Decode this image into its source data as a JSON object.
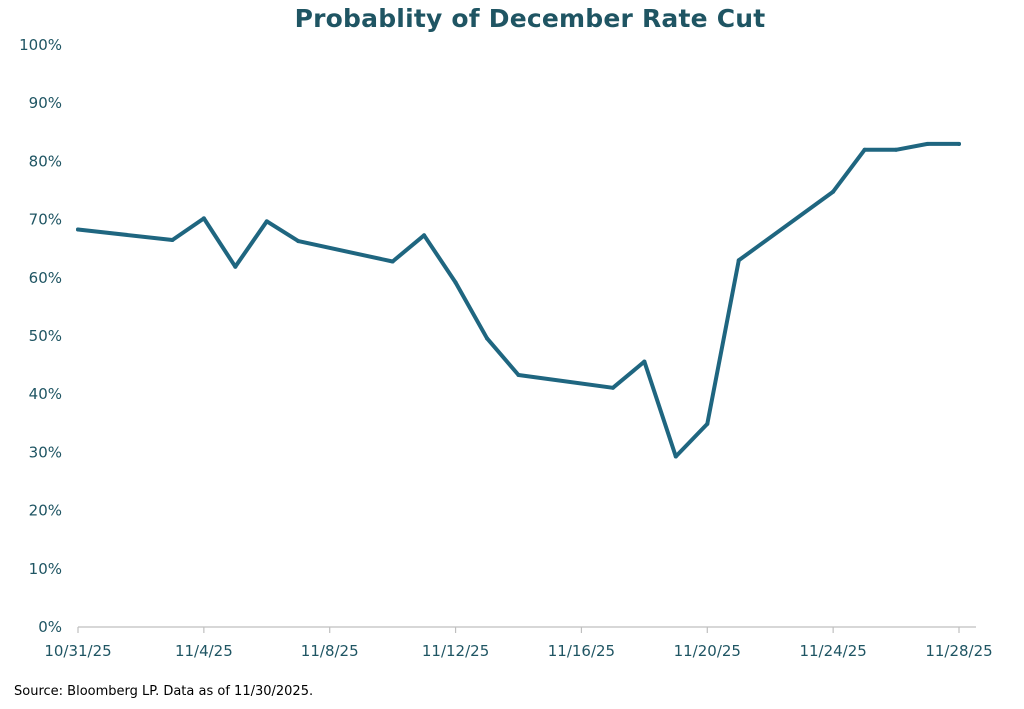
{
  "chart_data": {
    "type": "line",
    "title": "Probablity of December Rate Cut",
    "xlabel": "",
    "ylabel": "",
    "ylim": [
      0,
      100
    ],
    "y_ticks": [
      "0%",
      "10%",
      "20%",
      "30%",
      "40%",
      "50%",
      "60%",
      "70%",
      "80%",
      "90%",
      "100%"
    ],
    "x_ticks": [
      "10/31/25",
      "11/4/25",
      "11/8/25",
      "11/12/25",
      "11/16/25",
      "11/20/25",
      "11/24/25",
      "11/28/25"
    ],
    "x_range": [
      "2025-10-31",
      "2025-11-28"
    ],
    "grid": false,
    "legend": "none",
    "series": [
      {
        "color": "#1f6680",
        "points": [
          {
            "x": "2025-10-31",
            "y": 68.3
          },
          {
            "x": "2025-11-03",
            "y": 66.5
          },
          {
            "x": "2025-11-04",
            "y": 70.2
          },
          {
            "x": "2025-11-05",
            "y": 61.9
          },
          {
            "x": "2025-11-06",
            "y": 69.7
          },
          {
            "x": "2025-11-07",
            "y": 66.3
          },
          {
            "x": "2025-11-10",
            "y": 62.8
          },
          {
            "x": "2025-11-11",
            "y": 67.3
          },
          {
            "x": "2025-11-12",
            "y": 59.2
          },
          {
            "x": "2025-11-13",
            "y": 49.6
          },
          {
            "x": "2025-11-14",
            "y": 43.3
          },
          {
            "x": "2025-11-17",
            "y": 41.1
          },
          {
            "x": "2025-11-18",
            "y": 45.6
          },
          {
            "x": "2025-11-19",
            "y": 29.3
          },
          {
            "x": "2025-11-20",
            "y": 34.9
          },
          {
            "x": "2025-11-21",
            "y": 63.0
          },
          {
            "x": "2025-11-24",
            "y": 74.8
          },
          {
            "x": "2025-11-25",
            "y": 82.0
          },
          {
            "x": "2025-11-26",
            "y": 82.0
          },
          {
            "x": "2025-11-27",
            "y": 83.0
          },
          {
            "x": "2025-11-28",
            "y": 83.0
          }
        ]
      }
    ]
  },
  "footer": {
    "source": "Source: Bloomberg LP. Data as of 11/30/2025."
  }
}
